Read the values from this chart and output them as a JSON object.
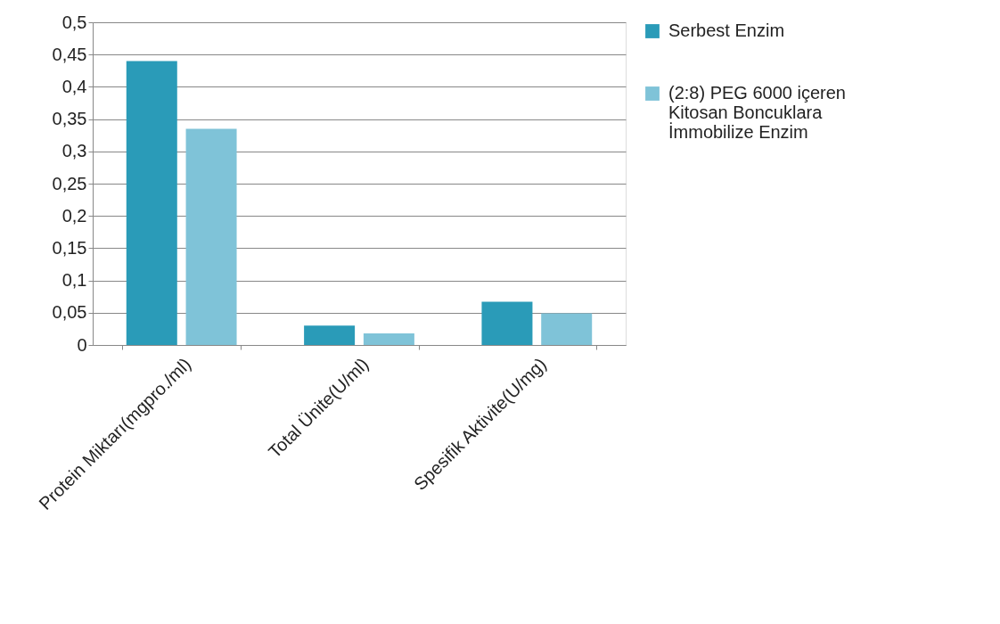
{
  "chart_data": {
    "type": "bar",
    "categories": [
      "Protein Miktarı(mgpro./ml)",
      "Total Ünite(U/ml)",
      "Spesifik Aktivite(U/mg)"
    ],
    "series": [
      {
        "name": "Serbest Enzim",
        "color": "#2a9bb8",
        "values": [
          0.44,
          0.03,
          0.067
        ]
      },
      {
        "name": "(2:8) PEG 6000 içeren Kitosan Boncuklara İmmobilize Enzim",
        "color": "#7fc3d8",
        "values": [
          0.335,
          0.018,
          0.049
        ]
      }
    ],
    "ylim": [
      0,
      0.5
    ],
    "yticks": [
      {
        "value": 0,
        "label": "0"
      },
      {
        "value": 0.05,
        "label": "0,05"
      },
      {
        "value": 0.1,
        "label": "0,1"
      },
      {
        "value": 0.15,
        "label": "0,15"
      },
      {
        "value": 0.2,
        "label": "0,2"
      },
      {
        "value": 0.25,
        "label": "0,25"
      },
      {
        "value": 0.3,
        "label": "0,3"
      },
      {
        "value": 0.35,
        "label": "0,35"
      },
      {
        "value": 0.4,
        "label": "0,4"
      },
      {
        "value": 0.45,
        "label": "0,45"
      },
      {
        "value": 0.5,
        "label": "0,5"
      }
    ],
    "grid": "y",
    "legend": "right"
  }
}
